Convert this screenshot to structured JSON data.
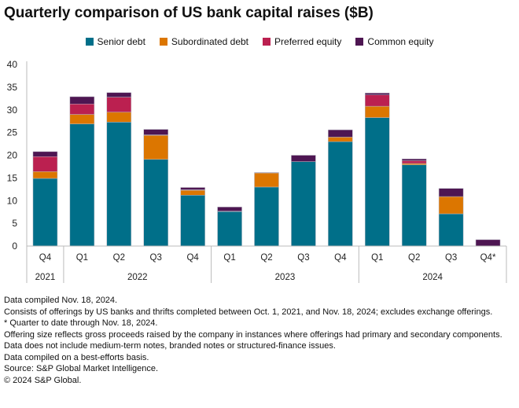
{
  "chart_data": {
    "type": "bar",
    "stacked": true,
    "title": "Quarterly comparison of US bank capital raises ($B)",
    "xlabel": "",
    "ylabel": "",
    "ylim": [
      0,
      40
    ],
    "yticks": [
      0,
      5,
      10,
      15,
      20,
      25,
      30,
      35,
      40
    ],
    "grid": false,
    "legend_position": "top",
    "categories": [
      "Q4",
      "Q1",
      "Q2",
      "Q3",
      "Q4",
      "Q1",
      "Q2",
      "Q3",
      "Q4",
      "Q1",
      "Q2",
      "Q3",
      "Q4*"
    ],
    "year_groups": [
      {
        "label": "2021",
        "count": 1
      },
      {
        "label": "2022",
        "count": 4
      },
      {
        "label": "2023",
        "count": 4
      },
      {
        "label": "2024",
        "count": 4
      }
    ],
    "series": [
      {
        "name": "Senior debt",
        "color": "#006f89",
        "values": [
          14.9,
          26.9,
          27.3,
          19.1,
          11.2,
          7.6,
          13.0,
          18.6,
          23.0,
          28.3,
          17.9,
          7.1,
          0
        ]
      },
      {
        "name": "Subordinated debt",
        "color": "#dc7600",
        "values": [
          1.5,
          2.1,
          2.2,
          5.3,
          1.1,
          0,
          3.1,
          0,
          1.0,
          2.5,
          0.3,
          3.8,
          0
        ]
      },
      {
        "name": "Preferred equity",
        "color": "#bb2050",
        "values": [
          3.3,
          2.3,
          3.3,
          0.1,
          0.1,
          0.1,
          0,
          0,
          0,
          2.5,
          0.6,
          0,
          0
        ]
      },
      {
        "name": "Common equity",
        "color": "#4e1652",
        "values": [
          1.1,
          1.6,
          1.0,
          1.2,
          0.5,
          0.9,
          0.1,
          1.4,
          1.6,
          0.4,
          0.4,
          1.8,
          1.4
        ]
      }
    ]
  },
  "notes": [
    "Data compiled Nov. 18, 2024.",
    "Consists of offerings by US banks and thrifts completed between Oct. 1, 2021, and Nov. 18, 2024; excludes exchange offerings.",
    "* Quarter to date through Nov. 18, 2024.",
    "Offering size reflects gross proceeds raised by the company in instances where offerings had primary and secondary components.",
    "Data does not include medium-term notes, branded notes or structured-finance issues.",
    "Data compiled on a best-efforts basis.",
    "Source: S&P Global Market Intelligence.",
    "© 2024 S&P Global."
  ]
}
